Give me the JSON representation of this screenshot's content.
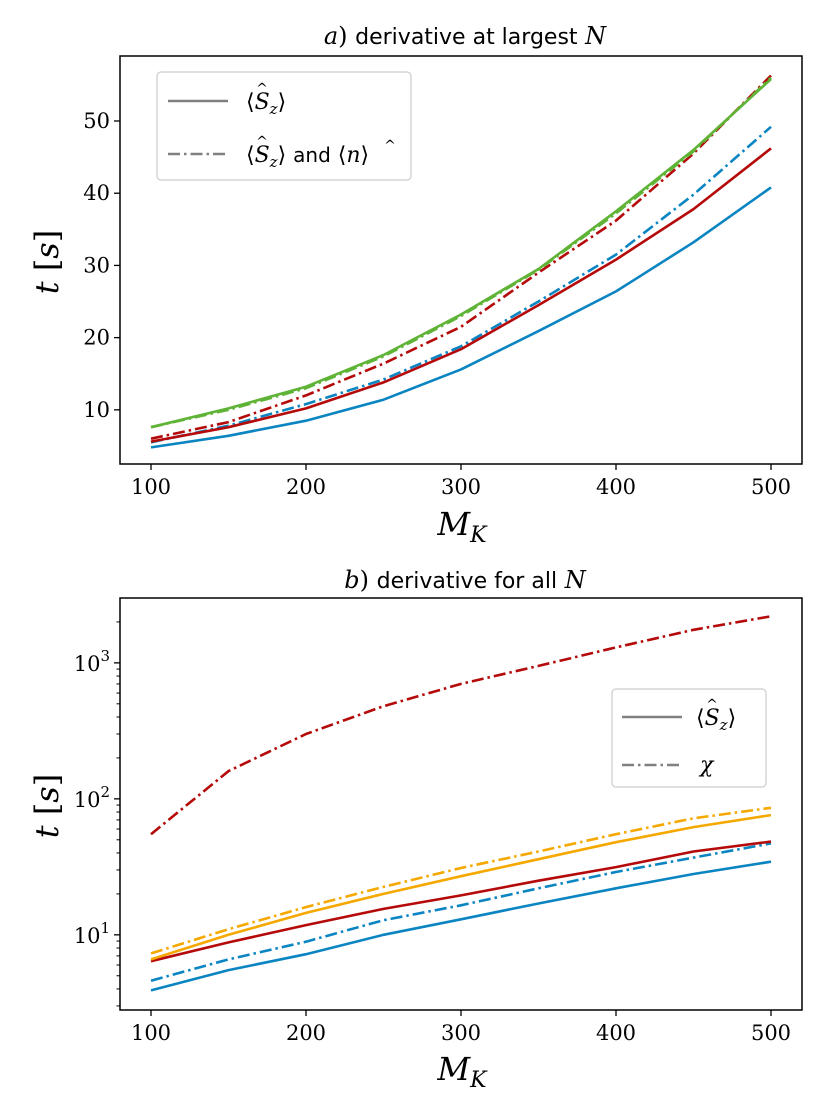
{
  "chart_data": [
    {
      "type": "line",
      "title": "a) derivative at largest N",
      "title_parts": {
        "prefix": "a",
        "text": "derivative at largest",
        "var": "N"
      },
      "xlabel": "M_K",
      "xlabel_parts": {
        "base": "M",
        "sub": "K"
      },
      "ylabel": "t [s]",
      "ylabel_parts": {
        "var": "t",
        "unit": "s"
      },
      "x": [
        100,
        150,
        200,
        250,
        300,
        350,
        400,
        450,
        500
      ],
      "xlim": [
        80,
        520
      ],
      "ylim": [
        2.5,
        59
      ],
      "yscale": "linear",
      "xticks": [
        100,
        200,
        300,
        400,
        500
      ],
      "xtick_labels": [
        "100",
        "200",
        "300",
        "400",
        "500"
      ],
      "yticks": [
        10,
        20,
        30,
        40,
        50
      ],
      "ytick_labels": [
        "10",
        "20",
        "30",
        "40",
        "50"
      ],
      "grid": false,
      "legend": {
        "placement": "upper-left",
        "entries": [
          {
            "label": "⟨Ŝz⟩",
            "style": "solid",
            "parts": {
              "op": "S",
              "sub": "z"
            }
          },
          {
            "label": "⟨Ŝz⟩ and ⟨n̂⟩",
            "style": "dashdot",
            "parts": {
              "op": "S",
              "sub": "z",
              "mid": "and",
              "op2": "n"
            }
          }
        ]
      },
      "series": [
        {
          "color": "#0a85c2",
          "style": "solid",
          "values": [
            4.8,
            6.4,
            8.5,
            11.4,
            15.6,
            20.9,
            26.4,
            33.2,
            40.8
          ]
        },
        {
          "color": "#0a85c2",
          "style": "dashdot",
          "values": [
            5.5,
            7.8,
            10.8,
            14.2,
            18.8,
            25.0,
            31.5,
            39.8,
            49.2
          ]
        },
        {
          "color": "#b50a0a",
          "style": "solid",
          "values": [
            5.6,
            7.6,
            10.2,
            13.8,
            18.4,
            24.5,
            30.8,
            37.8,
            46.2
          ]
        },
        {
          "color": "#b50a0a",
          "style": "dashdot",
          "values": [
            6.0,
            8.3,
            12.0,
            16.4,
            21.5,
            29.0,
            36.2,
            45.5,
            56.3
          ]
        },
        {
          "color": "#5fb336",
          "style": "solid",
          "values": [
            7.6,
            10.2,
            13.2,
            17.6,
            23.2,
            29.5,
            37.5,
            46.0,
            55.8
          ]
        },
        {
          "color": "#5fb336",
          "style": "dashdot",
          "values": [
            7.6,
            10.0,
            13.0,
            17.4,
            23.0,
            29.4,
            37.2,
            45.8,
            56.0
          ]
        }
      ]
    },
    {
      "type": "line",
      "title": "b) derivative for all N",
      "title_parts": {
        "prefix": "b",
        "text": "derivative for all",
        "var": "N"
      },
      "xlabel": "M_K",
      "xlabel_parts": {
        "base": "M",
        "sub": "K"
      },
      "ylabel": "t [s]",
      "ylabel_parts": {
        "var": "t",
        "unit": "s"
      },
      "x": [
        100,
        150,
        200,
        250,
        300,
        350,
        400,
        450,
        500
      ],
      "xlim": [
        80,
        520
      ],
      "ylim": [
        2.8,
        3000
      ],
      "yscale": "log",
      "xticks": [
        100,
        200,
        300,
        400,
        500
      ],
      "xtick_labels": [
        "100",
        "200",
        "300",
        "400",
        "500"
      ],
      "yticks": [
        10,
        100,
        1000
      ],
      "ytick_labels": [
        {
          "base": "10",
          "exp": "1"
        },
        {
          "base": "10",
          "exp": "2"
        },
        {
          "base": "10",
          "exp": "3"
        }
      ],
      "grid": false,
      "legend": {
        "placement": "center-right",
        "entries": [
          {
            "label": "⟨Ŝz⟩",
            "style": "solid",
            "parts": {
              "op": "S",
              "sub": "z"
            }
          },
          {
            "label": "χ",
            "style": "dashdot",
            "parts": {
              "sym": "χ"
            }
          }
        ]
      },
      "series": [
        {
          "color": "#0a85c2",
          "style": "solid",
          "values": [
            3.9,
            5.5,
            7.2,
            10.0,
            13.0,
            17.0,
            22.0,
            28.0,
            34.5
          ]
        },
        {
          "color": "#0a85c2",
          "style": "dashdot",
          "values": [
            4.6,
            6.6,
            8.9,
            12.8,
            16.5,
            22.0,
            29.0,
            37.0,
            47.0
          ]
        },
        {
          "color": "#b50a0a",
          "style": "solid",
          "values": [
            6.4,
            8.8,
            11.8,
            15.5,
            19.5,
            25.0,
            31.5,
            41.0,
            48.5
          ]
        },
        {
          "color": "#b50a0a",
          "style": "dashdot",
          "values": [
            55,
            160,
            300,
            480,
            700,
            950,
            1300,
            1750,
            2200
          ]
        },
        {
          "color": "#f5a800",
          "style": "solid",
          "values": [
            6.6,
            10.0,
            14.5,
            20.0,
            27.0,
            36.0,
            48.0,
            62.0,
            76.0
          ]
        },
        {
          "color": "#f5a800",
          "style": "dashdot",
          "values": [
            7.3,
            11.0,
            16.0,
            22.5,
            31.0,
            41.0,
            55.0,
            72.0,
            86.0
          ]
        }
      ]
    }
  ]
}
